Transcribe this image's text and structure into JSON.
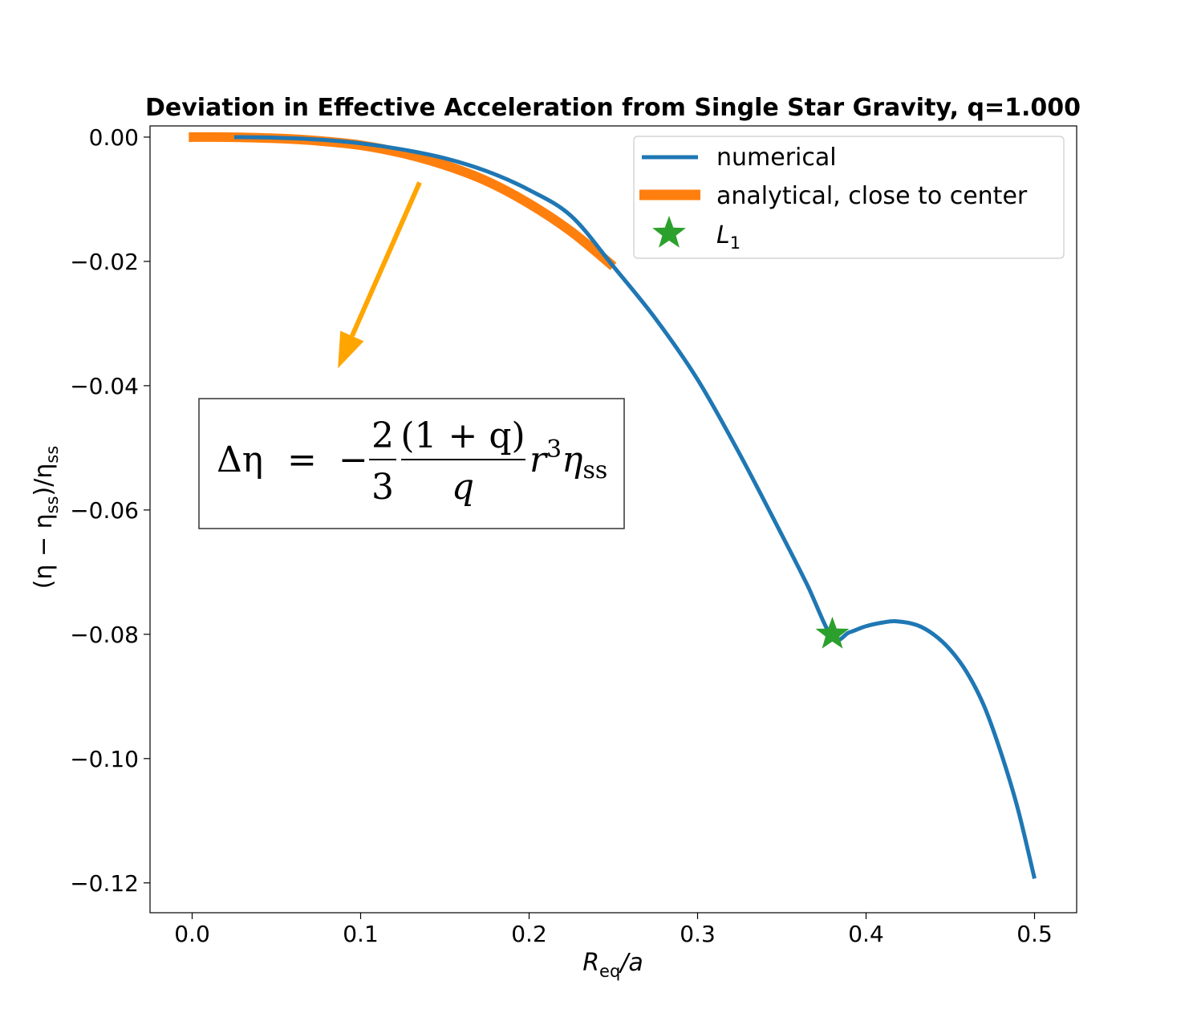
{
  "chart_data": {
    "type": "line",
    "title": "Deviation in Effective Acceleration from Single Star Gravity, q=1.000",
    "xlabel": {
      "main": "R",
      "sub": "eq",
      "rest": "/a"
    },
    "ylabel": {
      "p1": "(η − η",
      "sub1": "ss",
      "p2": ")/η",
      "sub2": "ss"
    },
    "xlim": [
      -0.025,
      0.525
    ],
    "ylim": [
      -0.1248,
      0.0018
    ],
    "xticks": [
      {
        "value": 0.0,
        "label": "0.0"
      },
      {
        "value": 0.1,
        "label": "0.1"
      },
      {
        "value": 0.2,
        "label": "0.2"
      },
      {
        "value": 0.3,
        "label": "0.3"
      },
      {
        "value": 0.4,
        "label": "0.4"
      },
      {
        "value": 0.5,
        "label": "0.5"
      }
    ],
    "yticks": [
      {
        "value": 0.0,
        "label": "0.00"
      },
      {
        "value": -0.02,
        "label": "−0.02"
      },
      {
        "value": -0.04,
        "label": "−0.04"
      },
      {
        "value": -0.06,
        "label": "−0.06"
      },
      {
        "value": -0.08,
        "label": "−0.08"
      },
      {
        "value": -0.1,
        "label": "−0.10"
      },
      {
        "value": -0.12,
        "label": "−0.12"
      }
    ],
    "grid": false,
    "legend_position": "top-right",
    "series": [
      {
        "name": "numerical",
        "color": "#1f77b4",
        "style": "line",
        "x": [
          0.025,
          0.05,
          0.075,
          0.1,
          0.125,
          0.15,
          0.175,
          0.2,
          0.225,
          0.25,
          0.275,
          0.3,
          0.325,
          0.35,
          0.365,
          0.38,
          0.39,
          0.4,
          0.41,
          0.418,
          0.43,
          0.44,
          0.45,
          0.46,
          0.47,
          0.48,
          0.49,
          0.5
        ],
        "y": [
          0.0,
          -0.0001,
          -0.0004,
          -0.001,
          -0.002,
          -0.0034,
          -0.0055,
          -0.0085,
          -0.0127,
          -0.0208,
          -0.0292,
          -0.039,
          -0.051,
          -0.064,
          -0.072,
          -0.0805,
          -0.0797,
          -0.0787,
          -0.0781,
          -0.0779,
          -0.0785,
          -0.08,
          -0.0825,
          -0.0862,
          -0.0915,
          -0.099,
          -0.108,
          -0.1193
        ]
      },
      {
        "name": "analytical, close to center",
        "color": "#ff7f0e",
        "style": "line",
        "x": [
          -0.002,
          0.02,
          0.05,
          0.075,
          0.1,
          0.125,
          0.15,
          0.175,
          0.2,
          0.225,
          0.25
        ],
        "y": [
          0.0,
          0.0,
          -0.0002,
          -0.0006,
          -0.0013,
          -0.0026,
          -0.0045,
          -0.0071,
          -0.0107,
          -0.0152,
          -0.0208
        ]
      },
      {
        "name": "L",
        "name_sub": "1",
        "color": "#2ca02c",
        "style": "star",
        "x": [
          0.38
        ],
        "y": [
          -0.08
        ]
      }
    ],
    "annotations": [
      {
        "kind": "formula",
        "lhs": "Δη",
        "eq": "=",
        "minus": "−",
        "frac1_num": "2",
        "frac1_den": "3",
        "frac2_num": "(1 + q)",
        "frac2_den": "q",
        "r": "r",
        "r_exp": "3",
        "eta": "η",
        "eta_sub": "ss"
      },
      {
        "kind": "arrow",
        "color": "#ffa500",
        "from": [
          0.135,
          -0.0073
        ],
        "to": [
          0.0865,
          -0.0372
        ]
      }
    ]
  }
}
